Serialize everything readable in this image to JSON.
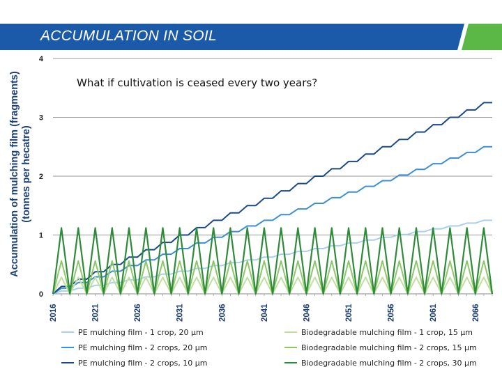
{
  "header": {
    "title": "ACCUMULATION IN SOIL",
    "bar_color": "#1a5aa8",
    "accent_color": "#5cb846"
  },
  "chart_data": {
    "type": "line",
    "annotation": "What if cultivation is ceased every two years?",
    "ylabel_line1": "Accumulation  of mulching film (fragments)",
    "ylabel_line2": "(tonnes per hecatre)",
    "ylim": [
      0,
      4
    ],
    "yticks": [
      "0",
      "1",
      "2",
      "3",
      "4"
    ],
    "xlim": [
      2016,
      2068
    ],
    "xticks": [
      "2016",
      "2021",
      "2026",
      "2031",
      "2036",
      "2041",
      "2046",
      "2051",
      "2056",
      "2061",
      "2066"
    ],
    "grid": true,
    "legend_position": "bottom",
    "series": [
      {
        "name": "PE mulching film - 1 crop, 20 µm",
        "color": "#a9cfee",
        "kind": "pe",
        "final": 1.25
      },
      {
        "name": "PE mulching film - 2 crops, 20 µm",
        "color": "#3a8fd6",
        "kind": "pe",
        "final": 2.5
      },
      {
        "name": "PE mulching film - 2 crops, 10 µm",
        "color": "#1a4a85",
        "kind": "pe",
        "final": 3.25
      },
      {
        "name": "Biodegradable mulching film - 1 crop, 15 µm",
        "color": "#bfe0a0",
        "kind": "bio",
        "peak": 0.28
      },
      {
        "name": "Biodegradable mulching film - 2 crops, 15 µm",
        "color": "#8cc86a",
        "kind": "bio",
        "peak": 0.56
      },
      {
        "name": "Biodegradable mulching film - 2 crops, 30 µm",
        "color": "#2e8b3a",
        "kind": "bio",
        "peak": 1.12
      }
    ]
  }
}
